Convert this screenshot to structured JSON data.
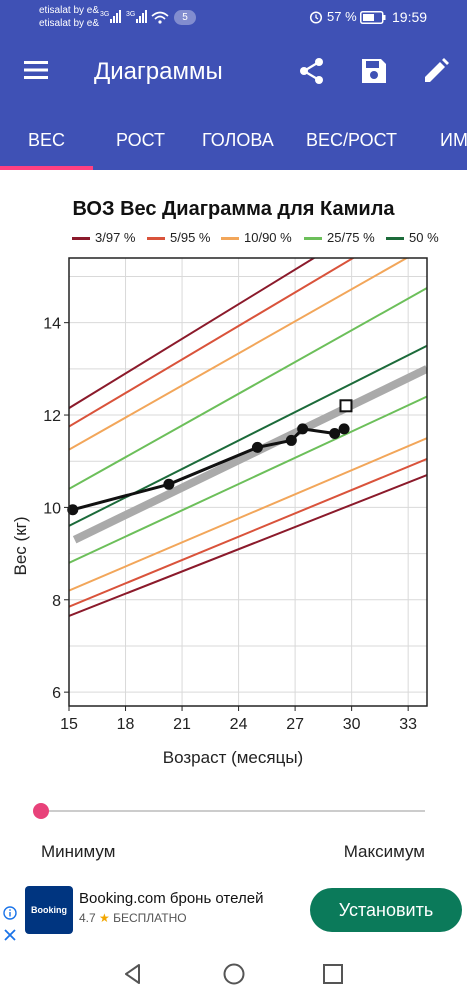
{
  "status_bar": {
    "carrier_1": "etisalat by e&",
    "carrier_2": "etisalat by e&",
    "notif_count": "5",
    "battery_pct": "57 %",
    "time": "19:59"
  },
  "app_bar": {
    "title": "Диаграммы",
    "icons": [
      "menu-icon",
      "share-icon",
      "save-icon",
      "edit-icon"
    ]
  },
  "tabs": [
    {
      "label": "ВЕС",
      "selected": true
    },
    {
      "label": "РОСТ",
      "selected": false
    },
    {
      "label": "ГОЛОВА",
      "selected": false
    },
    {
      "label": "ВЕС/РОСТ",
      "selected": false
    },
    {
      "label": "ИМ",
      "selected": false
    }
  ],
  "chart_data": {
    "type": "line",
    "title": "ВОЗ Вес Диаграмма для Камила",
    "xlabel": "Возраст (месяцы)",
    "ylabel": "Вес (кг)",
    "xlim": [
      15,
      34
    ],
    "ylim": [
      5.7,
      15.4
    ],
    "xticks": [
      15,
      18,
      21,
      24,
      27,
      30,
      33
    ],
    "yticks": [
      6,
      8,
      10,
      12,
      14
    ],
    "grid": true,
    "legend_position": "top",
    "legend": [
      {
        "label": "3/97 %",
        "color": "#8b1a2b"
      },
      {
        "label": "5/95 %",
        "color": "#d9533b"
      },
      {
        "label": "10/90 %",
        "color": "#f2a65a"
      },
      {
        "label": "25/75 %",
        "color": "#6cbf5a"
      },
      {
        "label": "50 %",
        "color": "#1c6b3a"
      }
    ],
    "percentile_lines": [
      {
        "group": "3/97 %",
        "color": "#8b1a2b",
        "x": [
          15,
          34
        ],
        "y": [
          12.15,
          16.9
        ]
      },
      {
        "group": "3/97 %",
        "color": "#8b1a2b",
        "x": [
          15,
          34
        ],
        "y": [
          7.65,
          10.7
        ]
      },
      {
        "group": "5/95 %",
        "color": "#d9533b",
        "x": [
          15,
          34
        ],
        "y": [
          11.75,
          16.35
        ]
      },
      {
        "group": "5/95 %",
        "color": "#d9533b",
        "x": [
          15,
          34
        ],
        "y": [
          7.85,
          11.05
        ]
      },
      {
        "group": "10/90 %",
        "color": "#f2a65a",
        "x": [
          15,
          34
        ],
        "y": [
          11.25,
          15.65
        ]
      },
      {
        "group": "10/90 %",
        "color": "#f2a65a",
        "x": [
          15,
          34
        ],
        "y": [
          8.2,
          11.5
        ]
      },
      {
        "group": "25/75 %",
        "color": "#6cbf5a",
        "x": [
          15,
          34
        ],
        "y": [
          10.4,
          14.75
        ]
      },
      {
        "group": "25/75 %",
        "color": "#6cbf5a",
        "x": [
          15,
          34
        ],
        "y": [
          8.8,
          12.4
        ]
      },
      {
        "group": "50 %",
        "color": "#1c6b3a",
        "x": [
          15,
          34
        ],
        "y": [
          9.6,
          13.5
        ]
      }
    ],
    "trend_line": {
      "color": "#aaaaaa",
      "x": [
        15.3,
        34
      ],
      "y": [
        9.3,
        13.0
      ]
    },
    "series": [
      {
        "x": [
          15.2,
          20.3,
          25.0,
          26.8,
          27.4,
          29.1,
          29.6
        ],
        "y": [
          9.95,
          10.5,
          11.3,
          11.45,
          11.7,
          11.6,
          11.7
        ],
        "color": "#111111"
      }
    ],
    "current_marker": {
      "x": 29.7,
      "y": 12.2,
      "shape": "square"
    }
  },
  "slider": {
    "min_label": "Минимум",
    "max_label": "Максимум",
    "value": 0
  },
  "ad": {
    "logo_text": "Booking",
    "title": "Booking.com бронь отелей",
    "rating": "4.7",
    "price": "БЕСПЛАТНО",
    "install_label": "Установить"
  }
}
